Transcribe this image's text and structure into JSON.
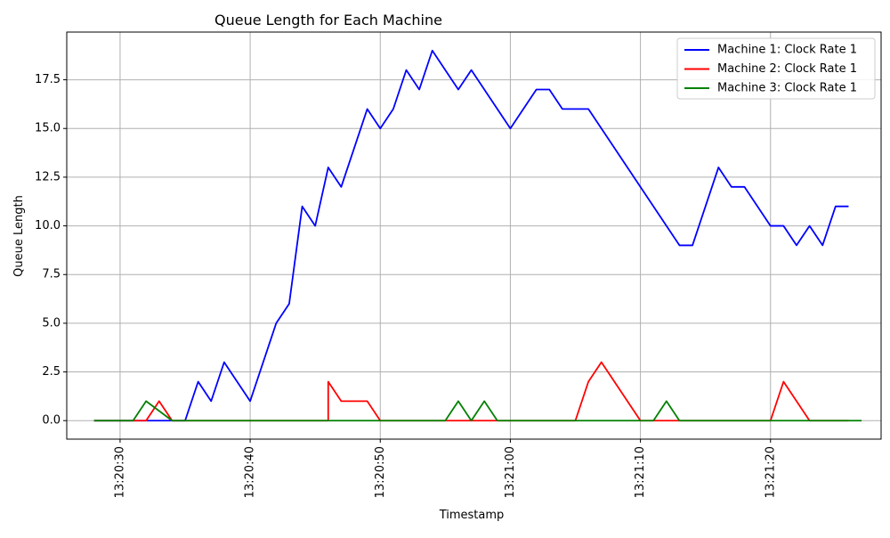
{
  "chart_data": {
    "type": "line",
    "title": "Queue Length for Each Machine",
    "xlabel": "Timestamp",
    "ylabel": "Queue Length",
    "x_unit": "seconds",
    "xlim": [
      "13:20:25.9",
      "13:21:28.5"
    ],
    "ylim": [
      -0.95,
      19.95
    ],
    "grid": true,
    "legend_position": "top-right",
    "x_ticks": [
      {
        "t": "13:20:30",
        "label": "13:20:30"
      },
      {
        "t": "13:20:40",
        "label": "13:20:40"
      },
      {
        "t": "13:20:50",
        "label": "13:20:50"
      },
      {
        "t": "13:21:00",
        "label": "13:21:00"
      },
      {
        "t": "13:21:10",
        "label": "13:21:10"
      },
      {
        "t": "13:21:20",
        "label": "13:21:20"
      }
    ],
    "y_ticks": [
      {
        "v": 0,
        "label": "0.0"
      },
      {
        "v": 2.5,
        "label": "2.5"
      },
      {
        "v": 5,
        "label": "5.0"
      },
      {
        "v": 7.5,
        "label": "7.5"
      },
      {
        "v": 10,
        "label": "10.0"
      },
      {
        "v": 12.5,
        "label": "12.5"
      },
      {
        "v": 15,
        "label": "15.0"
      },
      {
        "v": 17.5,
        "label": "17.5"
      }
    ],
    "series": [
      {
        "name": "Machine 1: Clock Rate 1",
        "color": "#0000ff",
        "x": [
          "13:20:28",
          "13:20:29",
          "13:20:30",
          "13:20:31",
          "13:20:32",
          "13:20:33",
          "13:20:34",
          "13:20:35",
          "13:20:36",
          "13:20:37",
          "13:20:38",
          "13:20:40",
          "13:20:42",
          "13:20:43",
          "13:20:44",
          "13:20:45",
          "13:20:46",
          "13:20:47",
          "13:20:49",
          "13:20:50",
          "13:20:51",
          "13:20:52",
          "13:20:53",
          "13:20:54",
          "13:20:56",
          "13:20:57",
          "13:21:00",
          "13:21:02",
          "13:21:03",
          "13:21:04",
          "13:21:06",
          "13:21:13",
          "13:21:14",
          "13:21:16",
          "13:21:17",
          "13:21:18",
          "13:21:20",
          "13:21:21",
          "13:21:22",
          "13:21:23",
          "13:21:24",
          "13:21:25",
          "13:21:26"
        ],
        "y": [
          0,
          0,
          0,
          0,
          0,
          0,
          0,
          0,
          2,
          1,
          3,
          1,
          5,
          6,
          11,
          10,
          13,
          12,
          16,
          15,
          16,
          18,
          17,
          19,
          17,
          18,
          15,
          17,
          17,
          16,
          16,
          9,
          9,
          13,
          12,
          12,
          10,
          10,
          9,
          10,
          9,
          11,
          11
        ]
      },
      {
        "name": "Machine 2: Clock Rate 1",
        "color": "#ff0000",
        "x": [
          "13:20:28",
          "13:20:32",
          "13:20:33",
          "13:20:34",
          "13:20:46",
          "13:20:46",
          "13:20:47",
          "13:20:49",
          "13:20:50",
          "13:21:05",
          "13:21:06",
          "13:21:07",
          "13:21:10",
          "13:21:20",
          "13:21:21",
          "13:21:23",
          "13:21:26"
        ],
        "y": [
          0,
          0,
          1,
          0,
          0,
          2,
          1,
          1,
          0,
          0,
          2,
          3,
          0,
          0,
          2,
          0,
          0
        ]
      },
      {
        "name": "Machine 3: Clock Rate 1",
        "color": "#008000",
        "x": [
          "13:20:28",
          "13:20:31",
          "13:20:32",
          "13:20:34",
          "13:20:55",
          "13:20:56",
          "13:20:57",
          "13:20:58",
          "13:20:59",
          "13:21:11",
          "13:21:12",
          "13:21:13",
          "13:21:27"
        ],
        "y": [
          0,
          0,
          1,
          0,
          0,
          1,
          0,
          1,
          0,
          0,
          1,
          0,
          0
        ]
      }
    ]
  }
}
